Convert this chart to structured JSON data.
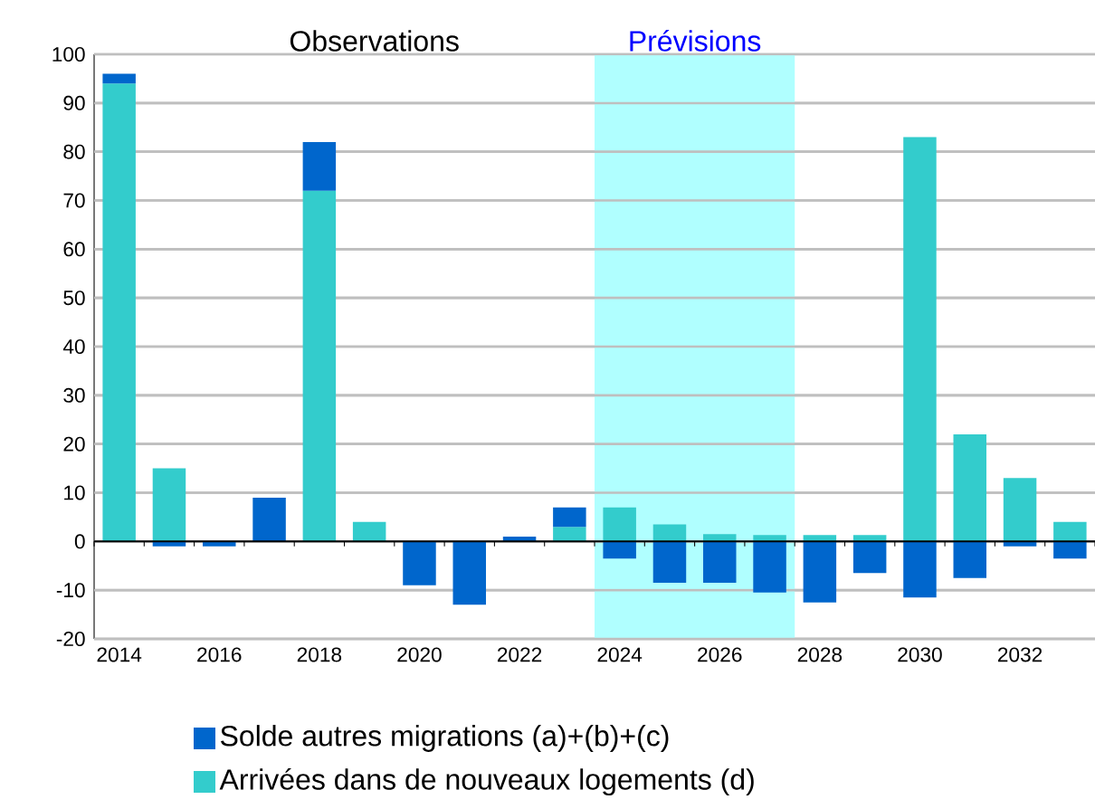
{
  "chart_data": {
    "type": "bar",
    "stacked": true,
    "x": [
      2014,
      2015,
      2016,
      2017,
      2018,
      2019,
      2020,
      2021,
      2022,
      2023,
      2024,
      2025,
      2026,
      2027,
      2028,
      2029,
      2030,
      2031,
      2032,
      2033
    ],
    "series": [
      {
        "name": "Arrivées dans de nouveaux logements (d)",
        "color": "#33cccc",
        "values": [
          94,
          15,
          0,
          0,
          72,
          4,
          0,
          0,
          0,
          3,
          7,
          3.5,
          1.5,
          1.3,
          1.3,
          1.3,
          83,
          22,
          13,
          4
        ]
      },
      {
        "name": "Solde autres migrations (a)+(b)+(c)",
        "color": "#0066cc",
        "values": [
          2,
          -1,
          -1,
          9,
          10,
          0,
          -9,
          -13,
          1,
          4,
          -3.5,
          -8.5,
          -8.5,
          -10.5,
          -12.5,
          -6.5,
          -11.5,
          -7.5,
          -1,
          -3.5
        ]
      }
    ],
    "xlim": [
      2013.5,
      2033.5
    ],
    "xticks": [
      2014,
      2016,
      2018,
      2020,
      2022,
      2024,
      2026,
      2028,
      2030,
      2032
    ],
    "ylim": [
      -20,
      100
    ],
    "yticks": [
      -20,
      -10,
      0,
      10,
      20,
      30,
      40,
      50,
      60,
      70,
      80,
      90,
      100
    ],
    "grid": "y",
    "legend": "bottom",
    "bands": [
      {
        "axis": "x",
        "from": 2023.5,
        "to": 2027.5,
        "label": "Prévisions",
        "color": "#b0ffff"
      }
    ],
    "annotations": [
      "Observations"
    ]
  }
}
